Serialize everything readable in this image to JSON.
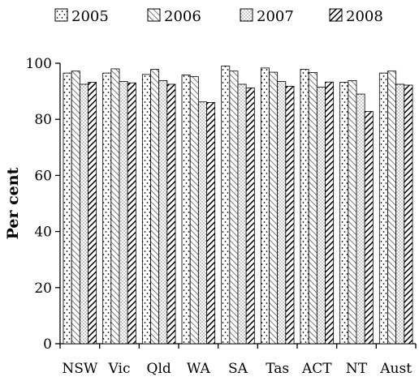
{
  "chart_data": {
    "type": "bar",
    "title": "",
    "xlabel": "",
    "ylabel": "Per cent",
    "ylim": [
      0,
      100
    ],
    "yticks": [
      0,
      20,
      40,
      60,
      80,
      100
    ],
    "grid": false,
    "legend_position": "top",
    "categories": [
      "NSW",
      "Vic",
      "Qld",
      "WA",
      "SA",
      "Tas",
      "ACT",
      "NT",
      "Aust"
    ],
    "series": [
      {
        "name": "2005",
        "pattern": "dots-sparse",
        "values": [
          96.5,
          96.5,
          96.0,
          95.8,
          99.0,
          98.3,
          97.8,
          93.2,
          96.5
        ]
      },
      {
        "name": "2006",
        "pattern": "diagonal-light",
        "values": [
          97.2,
          98.0,
          97.8,
          95.2,
          97.2,
          96.8,
          96.7,
          93.8,
          97.2
        ]
      },
      {
        "name": "2007",
        "pattern": "dots-fine",
        "values": [
          92.5,
          93.5,
          93.8,
          86.2,
          92.5,
          93.5,
          91.5,
          89.0,
          92.5
        ]
      },
      {
        "name": "2008",
        "pattern": "diagonal-heavy",
        "values": [
          93.2,
          93.0,
          92.5,
          86.0,
          91.2,
          91.8,
          93.3,
          82.8,
          92.2
        ]
      }
    ]
  }
}
